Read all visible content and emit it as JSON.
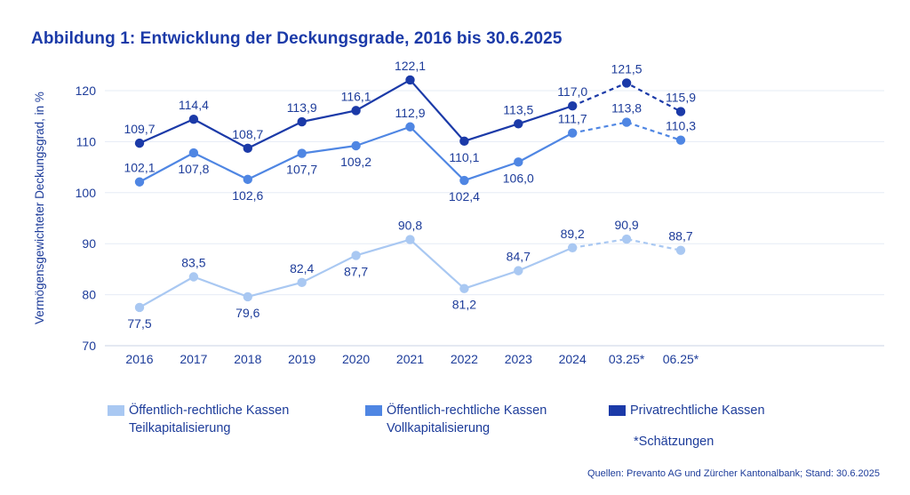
{
  "title": "Abbildung 1: Entwicklung der Deckungsgrade, 2016 bis 30.6.2025",
  "chart_data": {
    "type": "line",
    "categories": [
      "2016",
      "2017",
      "2018",
      "2019",
      "2020",
      "2021",
      "2022",
      "2023",
      "2024",
      "03.25*",
      "06.25*"
    ],
    "ylabel": "Vermögensgewichteter Deckungsgrad, in %",
    "ylim": [
      70,
      125
    ],
    "yticks": [
      70,
      80,
      90,
      100,
      110,
      120
    ],
    "grid": true,
    "estimate_start_index": 8,
    "series": [
      {
        "name": "Privatrechtliche Kassen",
        "color": "#1b3aa8",
        "values": [
          109.7,
          114.4,
          108.7,
          113.9,
          116.1,
          122.1,
          110.1,
          113.5,
          117.0,
          121.5,
          115.9
        ],
        "labels": [
          "109,7",
          "114,4",
          "108,7",
          "113,9",
          "116,1",
          "122,1",
          "110,1",
          "113,5",
          "117,0",
          "121,5",
          "115,9"
        ]
      },
      {
        "name": "Öffentlich-rechtliche Kassen Vollkapitalisierung",
        "color": "#4f86e3",
        "values": [
          102.1,
          107.8,
          102.6,
          107.7,
          109.2,
          112.9,
          102.4,
          106.0,
          111.7,
          113.8,
          110.3
        ],
        "labels": [
          "102,1",
          "107,8",
          "102,6",
          "107,7",
          "109,2",
          "112,9",
          "102,4",
          "106,0",
          "111,7",
          "113,8",
          "110,3"
        ]
      },
      {
        "name": "Öffentlich-rechtliche Kassen Teilkapitalisierung",
        "color": "#a9c8f2",
        "values": [
          77.5,
          83.5,
          79.6,
          82.4,
          87.7,
          90.8,
          81.2,
          84.7,
          89.2,
          90.9,
          88.7
        ],
        "labels": [
          "77,5",
          "83,5",
          "79,6",
          "82,4",
          "87,7",
          "90,8",
          "81,2",
          "84,7",
          "89,2",
          "90,9",
          "88,7"
        ]
      }
    ]
  },
  "legend": {
    "teil": {
      "line1": "Öffentlich-rechtliche Kassen",
      "line2": "Teilkapitalisierung",
      "color": "#a9c8f2"
    },
    "voll": {
      "line1": "Öffentlich-rechtliche Kassen",
      "line2": "Vollkapitalisierung",
      "color": "#4f86e3"
    },
    "privat": {
      "line1": "Privatrechtliche Kassen",
      "color": "#1b3aa8"
    }
  },
  "note": "*Schätzungen",
  "source": "Quellen: Prevanto AG und Zürcher Kantonalbank; Stand: 30.6.2025"
}
